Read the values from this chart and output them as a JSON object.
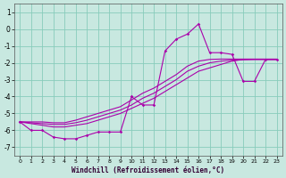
{
  "xlabel": "Windchill (Refroidissement éolien,°C)",
  "bg_color": "#c8e8e0",
  "line_color": "#aa00aa",
  "grid_color": "#88ccbb",
  "xlim": [
    -0.5,
    23.5
  ],
  "ylim": [
    -7.5,
    1.5
  ],
  "xticks": [
    0,
    1,
    2,
    3,
    4,
    5,
    6,
    7,
    8,
    9,
    10,
    11,
    12,
    13,
    14,
    15,
    16,
    17,
    18,
    19,
    20,
    21,
    22,
    23
  ],
  "yticks": [
    -7,
    -6,
    -5,
    -4,
    -3,
    -2,
    -1,
    0,
    1
  ],
  "series_jagged_x": [
    0,
    1,
    2,
    3,
    4,
    5,
    6,
    7,
    8,
    9,
    10,
    11,
    12,
    13,
    14,
    15,
    16,
    17,
    18,
    19,
    20,
    21,
    22,
    23
  ],
  "series_jagged_y": [
    -5.5,
    -6.0,
    -6.0,
    -6.4,
    -6.5,
    -6.5,
    -6.3,
    -6.1,
    -6.1,
    -6.1,
    -4.0,
    -4.5,
    -4.5,
    -1.3,
    -0.6,
    -0.3,
    0.3,
    -1.4,
    -1.4,
    -1.5,
    -3.1,
    -3.1,
    -1.8,
    -1.8
  ],
  "series_line1_x": [
    0,
    1,
    2,
    3,
    4,
    5,
    6,
    7,
    8,
    9,
    10,
    11,
    12,
    13,
    14,
    15,
    16,
    17,
    18,
    19,
    20,
    21,
    22,
    23
  ],
  "series_line1_y": [
    -5.5,
    -5.6,
    -5.7,
    -5.8,
    -5.8,
    -5.7,
    -5.6,
    -5.4,
    -5.2,
    -5.0,
    -4.7,
    -4.4,
    -4.1,
    -3.7,
    -3.3,
    -2.9,
    -2.5,
    -2.3,
    -2.1,
    -1.9,
    -1.8,
    -1.8,
    -1.8,
    -1.8
  ],
  "series_line2_x": [
    0,
    1,
    2,
    3,
    4,
    5,
    6,
    7,
    8,
    9,
    10,
    11,
    12,
    13,
    14,
    15,
    16,
    17,
    18,
    19,
    20,
    21,
    22,
    23
  ],
  "series_line2_y": [
    -5.5,
    -5.55,
    -5.6,
    -5.65,
    -5.65,
    -5.55,
    -5.4,
    -5.2,
    -5.0,
    -4.8,
    -4.5,
    -4.1,
    -3.8,
    -3.4,
    -3.0,
    -2.5,
    -2.2,
    -2.0,
    -1.9,
    -1.85,
    -1.82,
    -1.8,
    -1.8,
    -1.8
  ],
  "series_line3_x": [
    0,
    1,
    2,
    3,
    4,
    5,
    6,
    7,
    8,
    9,
    10,
    11,
    12,
    13,
    14,
    15,
    16,
    17,
    18,
    19,
    20,
    21,
    22,
    23
  ],
  "series_line3_y": [
    -5.5,
    -5.5,
    -5.5,
    -5.55,
    -5.55,
    -5.4,
    -5.2,
    -5.0,
    -4.8,
    -4.6,
    -4.2,
    -3.8,
    -3.5,
    -3.1,
    -2.7,
    -2.2,
    -1.9,
    -1.8,
    -1.78,
    -1.78,
    -1.78,
    -1.78,
    -1.78,
    -1.78
  ]
}
